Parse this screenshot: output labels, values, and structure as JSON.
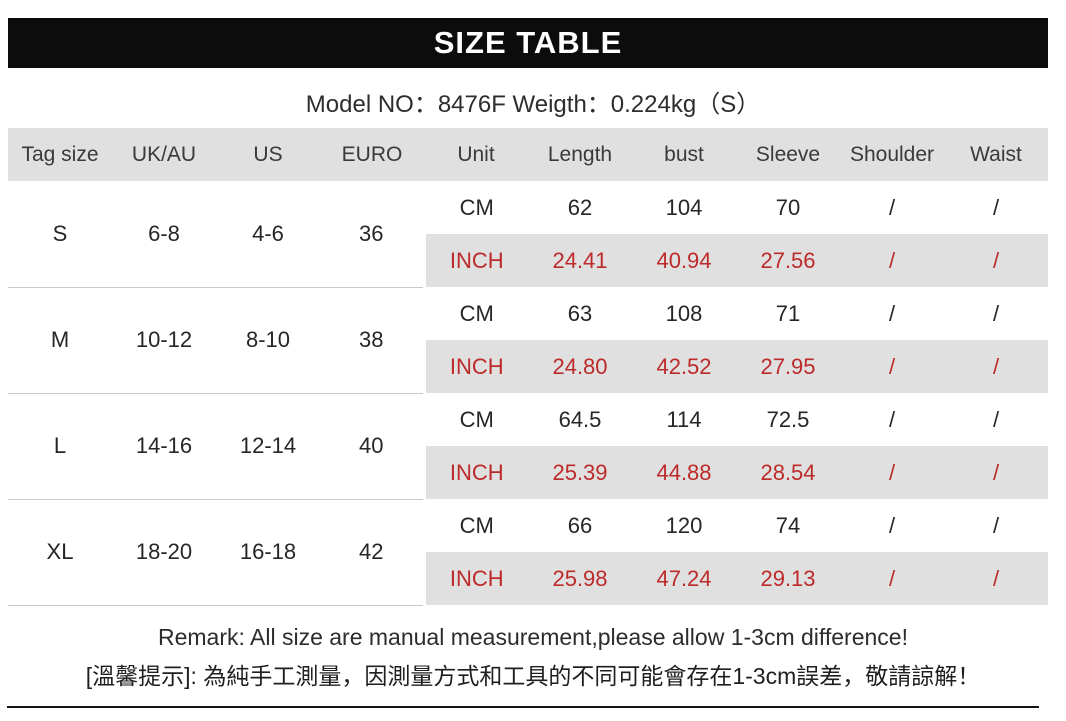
{
  "page": {
    "title": "SIZE TABLE",
    "model_line": "Model NO：8476F Weigth：0.224kg（S）"
  },
  "table": {
    "headers": [
      "Tag size",
      "UK/AU",
      "US",
      "EURO",
      "Unit",
      "Length",
      "bust",
      "Sleeve",
      "Shoulder",
      "Waist"
    ],
    "sizes": [
      {
        "tag": "S",
        "uk_au": "6-8",
        "us": "4-6",
        "euro": "36",
        "cm": {
          "unit": "CM",
          "length": "62",
          "bust": "104",
          "sleeve": "70",
          "shoulder": "/",
          "waist": "/"
        },
        "inch": {
          "unit": "INCH",
          "length": "24.41",
          "bust": "40.94",
          "sleeve": "27.56",
          "shoulder": "/",
          "waist": "/"
        }
      },
      {
        "tag": "M",
        "uk_au": "10-12",
        "us": "8-10",
        "euro": "38",
        "cm": {
          "unit": "CM",
          "length": "63",
          "bust": "108",
          "sleeve": "71",
          "shoulder": "/",
          "waist": "/"
        },
        "inch": {
          "unit": "INCH",
          "length": "24.80",
          "bust": "42.52",
          "sleeve": "27.95",
          "shoulder": "/",
          "waist": "/"
        }
      },
      {
        "tag": "L",
        "uk_au": "14-16",
        "us": "12-14",
        "euro": "40",
        "cm": {
          "unit": "CM",
          "length": "64.5",
          "bust": "114",
          "sleeve": "72.5",
          "shoulder": "/",
          "waist": "/"
        },
        "inch": {
          "unit": "INCH",
          "length": "25.39",
          "bust": "44.88",
          "sleeve": "28.54",
          "shoulder": "/",
          "waist": "/"
        }
      },
      {
        "tag": "XL",
        "uk_au": "18-20",
        "us": "16-18",
        "euro": "42",
        "cm": {
          "unit": "CM",
          "length": "66",
          "bust": "120",
          "sleeve": "74",
          "shoulder": "/",
          "waist": "/"
        },
        "inch": {
          "unit": "INCH",
          "length": "25.98",
          "bust": "47.24",
          "sleeve": "29.13",
          "shoulder": "/",
          "waist": "/"
        }
      }
    ]
  },
  "remark": {
    "line1": "Remark: All size are manual measurement,please allow 1-3cm difference!",
    "line2": "[溫馨提示]: 為純手工測量，因測量方式和工具的不同可能會存在1-3cm誤差，敬請諒解！"
  },
  "colors": {
    "title_bar_bg": "#0c0c0c",
    "header_bg": "#e0e0e0",
    "inch_row_bg": "#e0e0e0",
    "inch_text": "#bd2a2a"
  }
}
